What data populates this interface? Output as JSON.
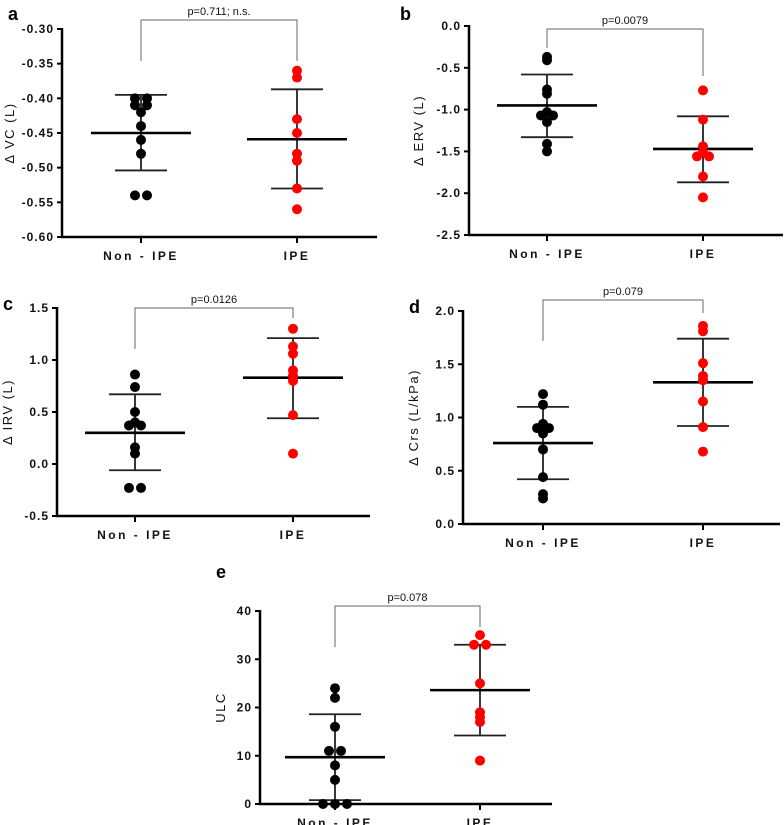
{
  "colors": {
    "non_ipe": "#000000",
    "ipe": "#ff0000",
    "axis": "#000000",
    "bracket": "#666666"
  },
  "chart_data": [
    {
      "panel": "a",
      "type": "scatter",
      "ylabel": "Δ VC (L)",
      "ylim": [
        -0.6,
        -0.3
      ],
      "yticks": [
        "-0.30",
        "-0.35",
        "-0.40",
        "-0.45",
        "-0.50",
        "-0.55",
        "-0.60"
      ],
      "ytick_values": [
        -0.3,
        -0.35,
        -0.4,
        -0.45,
        -0.5,
        -0.55,
        -0.6
      ],
      "categories": [
        "Non - IPE",
        "IPE"
      ],
      "p_label": "p=0.711; n.s.",
      "series": [
        {
          "name": "Non - IPE",
          "values": [
            -0.4,
            -0.4,
            -0.41,
            -0.41,
            -0.42,
            -0.44,
            -0.46,
            -0.48,
            -0.54,
            -0.54
          ],
          "mean": -0.45,
          "sd_upper": -0.395,
          "sd_lower": -0.504
        },
        {
          "name": "IPE",
          "values": [
            -0.36,
            -0.37,
            -0.43,
            -0.45,
            -0.48,
            -0.49,
            -0.53,
            -0.56
          ],
          "mean": -0.459,
          "sd_upper": -0.387,
          "sd_lower": -0.53
        }
      ]
    },
    {
      "panel": "b",
      "type": "scatter",
      "ylabel": "Δ ERV (L)",
      "ylim": [
        -2.5,
        0.0
      ],
      "yticks": [
        "0.0",
        "-0.5",
        "-1.0",
        "-1.5",
        "-2.0",
        "-2.5"
      ],
      "ytick_values": [
        0,
        -0.5,
        -1.0,
        -1.5,
        -2.0,
        -2.5
      ],
      "categories": [
        "Non - IPE",
        "IPE"
      ],
      "p_label": "p=0.0079",
      "series": [
        {
          "name": "Non - IPE",
          "values": [
            -0.37,
            -0.41,
            -0.76,
            -0.81,
            -1.03,
            -1.07,
            -1.07,
            -1.15,
            -1.41,
            -1.5
          ],
          "mean": -0.95,
          "sd_upper": -0.58,
          "sd_lower": -1.33
        },
        {
          "name": "IPE",
          "values": [
            -0.77,
            -1.12,
            -1.44,
            -1.51,
            -1.56,
            -1.56,
            -1.8,
            -2.05
          ],
          "mean": -1.47,
          "sd_upper": -1.08,
          "sd_lower": -1.87
        }
      ]
    },
    {
      "panel": "c",
      "type": "scatter",
      "ylabel": "Δ IRV (L)",
      "ylim": [
        -0.5,
        1.5
      ],
      "yticks": [
        "1.5",
        "1.0",
        "0.5",
        "0.0",
        "-0.5"
      ],
      "ytick_values": [
        1.5,
        1.0,
        0.5,
        0.0,
        -0.5
      ],
      "categories": [
        "Non - IPE",
        "IPE"
      ],
      "p_label": "p=0.0126",
      "series": [
        {
          "name": "Non - IPE",
          "values": [
            0.86,
            0.74,
            0.5,
            0.4,
            0.37,
            0.37,
            0.16,
            0.1,
            -0.23,
            -0.23
          ],
          "mean": 0.3,
          "sd_upper": 0.67,
          "sd_lower": -0.06
        },
        {
          "name": "IPE",
          "values": [
            1.3,
            1.13,
            1.06,
            0.9,
            0.85,
            0.8,
            0.47,
            0.1
          ],
          "mean": 0.83,
          "sd_upper": 1.21,
          "sd_lower": 0.44
        }
      ]
    },
    {
      "panel": "d",
      "type": "scatter",
      "ylabel": "Δ Crs (L/kPa)",
      "ylim": [
        0.0,
        2.0
      ],
      "yticks": [
        "2.0",
        "1.5",
        "1.0",
        "0.5",
        "0.0"
      ],
      "ytick_values": [
        2.0,
        1.5,
        1.0,
        0.5,
        0.0
      ],
      "categories": [
        "Non - IPE",
        "IPE"
      ],
      "p_label": "p=0.079",
      "series": [
        {
          "name": "Non - IPE",
          "values": [
            1.22,
            1.12,
            0.94,
            0.9,
            0.9,
            0.85,
            0.7,
            0.44,
            0.28,
            0.24
          ],
          "mean": 0.76,
          "sd_upper": 1.1,
          "sd_lower": 0.42
        },
        {
          "name": "IPE",
          "values": [
            1.86,
            1.81,
            1.51,
            1.39,
            1.35,
            1.15,
            0.91,
            0.68
          ],
          "mean": 1.33,
          "sd_upper": 1.74,
          "sd_lower": 0.92
        }
      ]
    },
    {
      "panel": "e",
      "type": "scatter",
      "ylabel": "ULC",
      "ylim": [
        0,
        40
      ],
      "yticks": [
        "40",
        "30",
        "20",
        "10",
        "0"
      ],
      "ytick_values": [
        40,
        30,
        20,
        10,
        0
      ],
      "categories": [
        "Non - IPE",
        "IPE"
      ],
      "p_label": "p=0.078",
      "series": [
        {
          "name": "Non - IPE",
          "values": [
            24,
            22,
            16,
            11,
            11,
            8,
            5,
            0,
            0,
            0
          ],
          "mean": 9.7,
          "sd_upper": 18.6,
          "sd_lower": 0.8
        },
        {
          "name": "IPE",
          "values": [
            35,
            33,
            33,
            25,
            19,
            18,
            17,
            9
          ],
          "mean": 23.6,
          "sd_upper": 33.0,
          "sd_lower": 14.2
        }
      ]
    }
  ]
}
